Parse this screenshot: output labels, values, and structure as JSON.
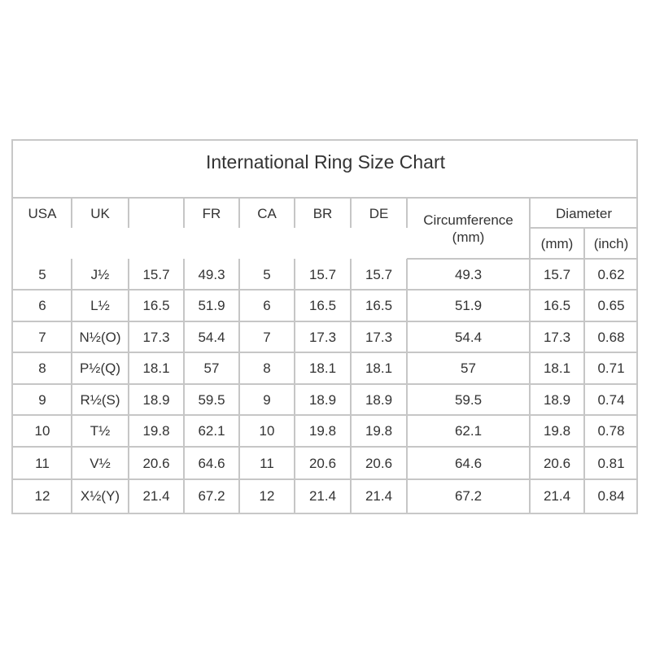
{
  "title": "International Ring Size Chart",
  "headers": [
    "USA",
    "UK",
    "",
    "FR",
    "CA",
    "BR",
    "DE"
  ],
  "circumference_header": "Circumference\n(mm)",
  "diameter_header": "Diameter",
  "diameter_sub": [
    "(mm)",
    "(inch)"
  ],
  "rows": [
    [
      "5",
      "J½",
      "15.7",
      "49.3",
      "5",
      "15.7",
      "15.7",
      "49.3",
      "15.7",
      "0.62"
    ],
    [
      "6",
      "L½",
      "16.5",
      "51.9",
      "6",
      "16.5",
      "16.5",
      "51.9",
      "16.5",
      "0.65"
    ],
    [
      "7",
      "N½(O)",
      "17.3",
      "54.4",
      "7",
      "17.3",
      "17.3",
      "54.4",
      "17.3",
      "0.68"
    ],
    [
      "8",
      "P½(Q)",
      "18.1",
      "57",
      "8",
      "18.1",
      "18.1",
      "57",
      "18.1",
      "0.71"
    ],
    [
      "9",
      "R½(S)",
      "18.9",
      "59.5",
      "9",
      "18.9",
      "18.9",
      "59.5",
      "18.9",
      "0.74"
    ],
    [
      "10",
      "T½",
      "19.8",
      "62.1",
      "10",
      "19.8",
      "19.8",
      "62.1",
      "19.8",
      "0.78"
    ],
    [
      "11",
      "V½",
      "20.6",
      "64.6",
      "11",
      "20.6",
      "20.6",
      "64.6",
      "20.6",
      "0.81"
    ],
    [
      "12",
      "X½(Y)",
      "21.4",
      "67.2",
      "12",
      "21.4",
      "21.4",
      "67.2",
      "21.4",
      "0.84"
    ]
  ]
}
